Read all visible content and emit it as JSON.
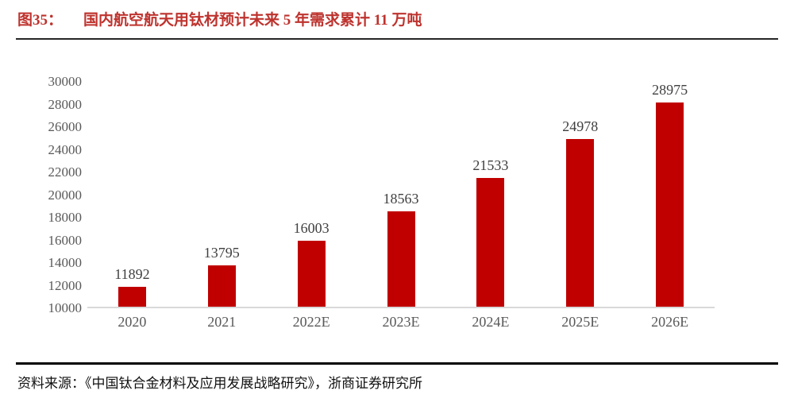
{
  "figure": {
    "label": "图35：",
    "title": "国内航空航天用钛材预计未来 5 年需求累计 11 万吨"
  },
  "source": {
    "text": "资料来源：《中国钛合金材料及应用发展战略研究》，浙商证券研究所"
  },
  "chart_data": {
    "type": "bar",
    "title": "国内航空航天用钛材预计未来 5 年需求累计 11 万吨",
    "categories": [
      "2020",
      "2021",
      "2022E",
      "2023E",
      "2024E",
      "2025E",
      "2026E"
    ],
    "values": [
      11892,
      13795,
      16003,
      18563,
      21533,
      24978,
      28975
    ],
    "xlabel": "",
    "ylabel": "",
    "ylim": [
      10000,
      30000
    ],
    "ytick_step": 2000,
    "yticks": [
      10000,
      12000,
      14000,
      16000,
      18000,
      20000,
      22000,
      24000,
      26000,
      28000,
      30000
    ],
    "grid": false,
    "legend": "none",
    "data_labels": true,
    "colors": {
      "bar": "#C00000",
      "title_text": "#BE332E",
      "value_label": "#3F3F3F",
      "tick_label": "#595959",
      "axis_line": "#D9D9D9",
      "rule": "#000000"
    }
  }
}
